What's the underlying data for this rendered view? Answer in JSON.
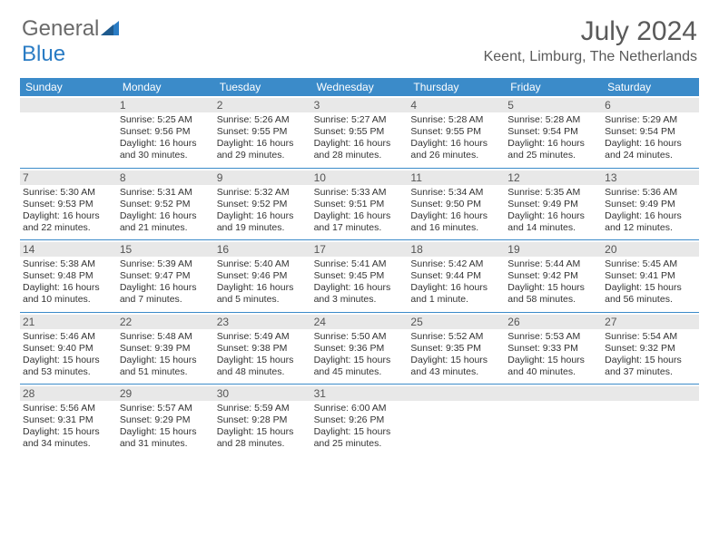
{
  "logo": {
    "part1": "General",
    "part2": "Blue"
  },
  "title": "July 2024",
  "location": "Keent, Limburg, The Netherlands",
  "colors": {
    "header_bg": "#3b8bc9",
    "header_text": "#ffffff",
    "daynum_bg": "#e8e8e8",
    "text": "#333333",
    "rule": "#3b8bc9"
  },
  "weekdays": [
    "Sunday",
    "Monday",
    "Tuesday",
    "Wednesday",
    "Thursday",
    "Friday",
    "Saturday"
  ],
  "weeks": [
    [
      null,
      {
        "n": "1",
        "sr": "5:25 AM",
        "ss": "9:56 PM",
        "dl": "16 hours and 30 minutes."
      },
      {
        "n": "2",
        "sr": "5:26 AM",
        "ss": "9:55 PM",
        "dl": "16 hours and 29 minutes."
      },
      {
        "n": "3",
        "sr": "5:27 AM",
        "ss": "9:55 PM",
        "dl": "16 hours and 28 minutes."
      },
      {
        "n": "4",
        "sr": "5:28 AM",
        "ss": "9:55 PM",
        "dl": "16 hours and 26 minutes."
      },
      {
        "n": "5",
        "sr": "5:28 AM",
        "ss": "9:54 PM",
        "dl": "16 hours and 25 minutes."
      },
      {
        "n": "6",
        "sr": "5:29 AM",
        "ss": "9:54 PM",
        "dl": "16 hours and 24 minutes."
      }
    ],
    [
      {
        "n": "7",
        "sr": "5:30 AM",
        "ss": "9:53 PM",
        "dl": "16 hours and 22 minutes."
      },
      {
        "n": "8",
        "sr": "5:31 AM",
        "ss": "9:52 PM",
        "dl": "16 hours and 21 minutes."
      },
      {
        "n": "9",
        "sr": "5:32 AM",
        "ss": "9:52 PM",
        "dl": "16 hours and 19 minutes."
      },
      {
        "n": "10",
        "sr": "5:33 AM",
        "ss": "9:51 PM",
        "dl": "16 hours and 17 minutes."
      },
      {
        "n": "11",
        "sr": "5:34 AM",
        "ss": "9:50 PM",
        "dl": "16 hours and 16 minutes."
      },
      {
        "n": "12",
        "sr": "5:35 AM",
        "ss": "9:49 PM",
        "dl": "16 hours and 14 minutes."
      },
      {
        "n": "13",
        "sr": "5:36 AM",
        "ss": "9:49 PM",
        "dl": "16 hours and 12 minutes."
      }
    ],
    [
      {
        "n": "14",
        "sr": "5:38 AM",
        "ss": "9:48 PM",
        "dl": "16 hours and 10 minutes."
      },
      {
        "n": "15",
        "sr": "5:39 AM",
        "ss": "9:47 PM",
        "dl": "16 hours and 7 minutes."
      },
      {
        "n": "16",
        "sr": "5:40 AM",
        "ss": "9:46 PM",
        "dl": "16 hours and 5 minutes."
      },
      {
        "n": "17",
        "sr": "5:41 AM",
        "ss": "9:45 PM",
        "dl": "16 hours and 3 minutes."
      },
      {
        "n": "18",
        "sr": "5:42 AM",
        "ss": "9:44 PM",
        "dl": "16 hours and 1 minute."
      },
      {
        "n": "19",
        "sr": "5:44 AM",
        "ss": "9:42 PM",
        "dl": "15 hours and 58 minutes."
      },
      {
        "n": "20",
        "sr": "5:45 AM",
        "ss": "9:41 PM",
        "dl": "15 hours and 56 minutes."
      }
    ],
    [
      {
        "n": "21",
        "sr": "5:46 AM",
        "ss": "9:40 PM",
        "dl": "15 hours and 53 minutes."
      },
      {
        "n": "22",
        "sr": "5:48 AM",
        "ss": "9:39 PM",
        "dl": "15 hours and 51 minutes."
      },
      {
        "n": "23",
        "sr": "5:49 AM",
        "ss": "9:38 PM",
        "dl": "15 hours and 48 minutes."
      },
      {
        "n": "24",
        "sr": "5:50 AM",
        "ss": "9:36 PM",
        "dl": "15 hours and 45 minutes."
      },
      {
        "n": "25",
        "sr": "5:52 AM",
        "ss": "9:35 PM",
        "dl": "15 hours and 43 minutes."
      },
      {
        "n": "26",
        "sr": "5:53 AM",
        "ss": "9:33 PM",
        "dl": "15 hours and 40 minutes."
      },
      {
        "n": "27",
        "sr": "5:54 AM",
        "ss": "9:32 PM",
        "dl": "15 hours and 37 minutes."
      }
    ],
    [
      {
        "n": "28",
        "sr": "5:56 AM",
        "ss": "9:31 PM",
        "dl": "15 hours and 34 minutes."
      },
      {
        "n": "29",
        "sr": "5:57 AM",
        "ss": "9:29 PM",
        "dl": "15 hours and 31 minutes."
      },
      {
        "n": "30",
        "sr": "5:59 AM",
        "ss": "9:28 PM",
        "dl": "15 hours and 28 minutes."
      },
      {
        "n": "31",
        "sr": "6:00 AM",
        "ss": "9:26 PM",
        "dl": "15 hours and 25 minutes."
      },
      null,
      null,
      null
    ]
  ]
}
